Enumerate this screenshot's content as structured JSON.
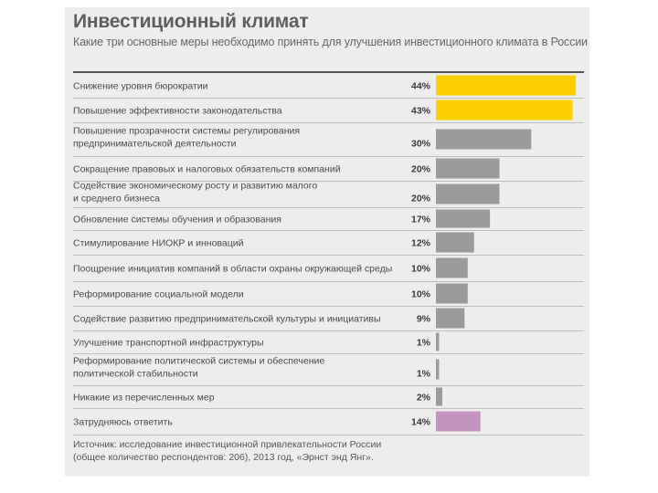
{
  "header": {
    "title": "Инвестиционный климат",
    "subtitle": "Какие три основные меры необходимо принять для улучшения инвестиционного климата в России"
  },
  "colors": {
    "highlight": "#fcd000",
    "normal": "#9a9a9a",
    "undecided": "#c693c1"
  },
  "chart_data": {
    "type": "bar",
    "orientation": "horizontal",
    "title": "Инвестиционный климат",
    "subtitle": "Какие три основные меры необходимо принять для улучшения инвестиционного климата в России",
    "xlim": [
      0,
      44
    ],
    "unit": "%",
    "categories": [
      [
        "Снижение уровня бюрократии"
      ],
      [
        "Повышение эффективности законодательства"
      ],
      [
        "Повышение прозрачности системы регулирования",
        "предпринимательской деятельности"
      ],
      [
        "Сокращение правовых и налоговых обязательств компаний"
      ],
      [
        "Содействие экономическому росту и развитию малого",
        "и среднего бизнеса"
      ],
      [
        "Обновление системы обучения и образования"
      ],
      [
        "Стимулирование НИОКР и инноваций"
      ],
      [
        "Поощрение инициатив компаний в области охраны окружающей среды"
      ],
      [
        "Реформирование социальной модели"
      ],
      [
        "Содействие развитию предпринимательской культуры и инициативы"
      ],
      [
        "Улучшение транспортной инфраструктуры"
      ],
      [
        "Реформирование политической системы и обеспечение",
        "политической стабильности"
      ],
      [
        "Никакие из перечисленных мер"
      ],
      [
        "Затрудняюсь ответить"
      ]
    ],
    "values": [
      44,
      43,
      30,
      20,
      20,
      17,
      12,
      10,
      10,
      9,
      1,
      1,
      2,
      14
    ],
    "value_labels": [
      "44%",
      "43%",
      "30%",
      "20%",
      "20%",
      "17%",
      "12%",
      "10%",
      "10%",
      "9%",
      "1%",
      "1%",
      "2%",
      "14%"
    ],
    "bar_color_keys": [
      "highlight",
      "highlight",
      "normal",
      "normal",
      "normal",
      "normal",
      "normal",
      "normal",
      "normal",
      "normal",
      "normal",
      "normal",
      "normal",
      "undecided"
    ]
  },
  "source": {
    "line1": "Источник: исследование инвестиционной привлекательности России",
    "line2": "(общее количество респондентов: 206), 2013 год, «Эрнст энд Янг»."
  }
}
